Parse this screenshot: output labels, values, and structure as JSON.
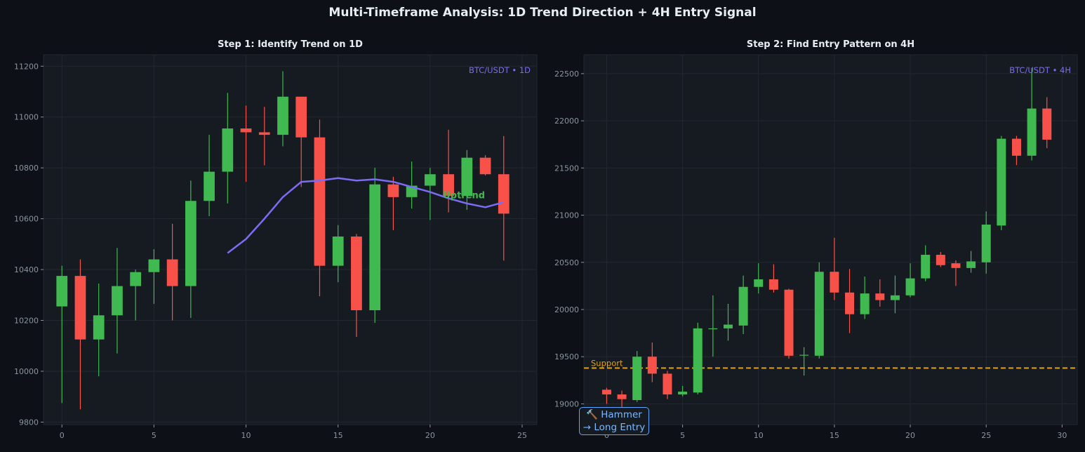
{
  "title": "Multi-Timeframe Analysis: 1D Trend Direction + 4H Entry Signal",
  "colors": {
    "up": "#3fb950",
    "down": "#f85149",
    "ma": "#7b6cf6",
    "support": "#e3a008",
    "annotation": "#58a6ff"
  },
  "chart_data": [
    {
      "type": "candlestick",
      "title": "Step 1: Identify Trend on 1D",
      "badge": "BTC/USDT • 1D",
      "trend_label": "Uptrend",
      "xlim": [
        -1,
        25.8
      ],
      "ylim": [
        9790,
        11245
      ],
      "x_ticks": [
        0,
        5,
        10,
        15,
        20,
        25
      ],
      "y_ticks": [
        9800,
        10000,
        10200,
        10400,
        10600,
        10800,
        11000,
        11200
      ],
      "grid": true,
      "candles": [
        {
          "x": 0,
          "o": 10255,
          "h": 10415,
          "l": 9875,
          "c": 10375
        },
        {
          "x": 1,
          "o": 10375,
          "h": 10440,
          "l": 9850,
          "c": 10125
        },
        {
          "x": 2,
          "o": 10125,
          "h": 10345,
          "l": 9980,
          "c": 10220
        },
        {
          "x": 3,
          "o": 10220,
          "h": 10485,
          "l": 10070,
          "c": 10335
        },
        {
          "x": 4,
          "o": 10335,
          "h": 10400,
          "l": 10200,
          "c": 10390
        },
        {
          "x": 5,
          "o": 10390,
          "h": 10480,
          "l": 10265,
          "c": 10440
        },
        {
          "x": 6,
          "o": 10440,
          "h": 10580,
          "l": 10200,
          "c": 10335
        },
        {
          "x": 7,
          "o": 10335,
          "h": 10750,
          "l": 10210,
          "c": 10670
        },
        {
          "x": 8,
          "o": 10670,
          "h": 10930,
          "l": 10610,
          "c": 10785
        },
        {
          "x": 9,
          "o": 10785,
          "h": 11095,
          "l": 10660,
          "c": 10955
        },
        {
          "x": 10,
          "o": 10955,
          "h": 11045,
          "l": 10745,
          "c": 10940
        },
        {
          "x": 11,
          "o": 10940,
          "h": 11040,
          "l": 10810,
          "c": 10930
        },
        {
          "x": 12,
          "o": 10930,
          "h": 11180,
          "l": 10885,
          "c": 11080
        },
        {
          "x": 13,
          "o": 11080,
          "h": 11080,
          "l": 10725,
          "c": 10920
        },
        {
          "x": 14,
          "o": 10920,
          "h": 10990,
          "l": 10295,
          "c": 10415
        },
        {
          "x": 15,
          "o": 10415,
          "h": 10575,
          "l": 10350,
          "c": 10530
        },
        {
          "x": 16,
          "o": 10530,
          "h": 10540,
          "l": 10135,
          "c": 10240
        },
        {
          "x": 17,
          "o": 10240,
          "h": 10800,
          "l": 10190,
          "c": 10735
        },
        {
          "x": 18,
          "o": 10735,
          "h": 10765,
          "l": 10555,
          "c": 10685
        },
        {
          "x": 19,
          "o": 10685,
          "h": 10825,
          "l": 10640,
          "c": 10730
        },
        {
          "x": 20,
          "o": 10730,
          "h": 10800,
          "l": 10595,
          "c": 10775
        },
        {
          "x": 21,
          "o": 10775,
          "h": 10950,
          "l": 10625,
          "c": 10690
        },
        {
          "x": 22,
          "o": 10690,
          "h": 10870,
          "l": 10635,
          "c": 10840
        },
        {
          "x": 23,
          "o": 10840,
          "h": 10850,
          "l": 10770,
          "c": 10775
        },
        {
          "x": 24,
          "o": 10775,
          "h": 10925,
          "l": 10435,
          "c": 10620
        }
      ],
      "ma": [
        {
          "x": 9,
          "y": 10465
        },
        {
          "x": 10,
          "y": 10520
        },
        {
          "x": 11,
          "y": 10600
        },
        {
          "x": 12,
          "y": 10685
        },
        {
          "x": 13,
          "y": 10745
        },
        {
          "x": 14,
          "y": 10750
        },
        {
          "x": 15,
          "y": 10760
        },
        {
          "x": 16,
          "y": 10750
        },
        {
          "x": 17,
          "y": 10755
        },
        {
          "x": 18,
          "y": 10745
        },
        {
          "x": 19,
          "y": 10725
        },
        {
          "x": 20,
          "y": 10705
        },
        {
          "x": 21,
          "y": 10680
        },
        {
          "x": 22,
          "y": 10660
        },
        {
          "x": 23,
          "y": 10645
        },
        {
          "x": 24,
          "y": 10665
        }
      ],
      "trend_label_pos": {
        "x": 20.7,
        "y": 10680
      }
    },
    {
      "type": "candlestick",
      "title": "Step 2: Find Entry Pattern on 4H",
      "badge": "BTC/USDT • 4H",
      "xlim": [
        -1.5,
        31
      ],
      "ylim": [
        18780,
        22700
      ],
      "x_ticks": [
        0,
        5,
        10,
        15,
        20,
        25,
        30
      ],
      "y_ticks": [
        19000,
        19500,
        20000,
        20500,
        21000,
        21500,
        22000,
        22500
      ],
      "grid": true,
      "support": {
        "y": 19380,
        "label": "Support"
      },
      "annotation": {
        "line1": "🔨 Hammer",
        "line2": "→ Long Entry"
      },
      "candles": [
        {
          "x": 0,
          "o": 19150,
          "h": 19170,
          "l": 19000,
          "c": 19100
        },
        {
          "x": 1,
          "o": 19100,
          "h": 19140,
          "l": 18960,
          "c": 19050
        },
        {
          "x": 2,
          "o": 19040,
          "h": 19560,
          "l": 19020,
          "c": 19500
        },
        {
          "x": 3,
          "o": 19500,
          "h": 19650,
          "l": 19230,
          "c": 19320
        },
        {
          "x": 4,
          "o": 19320,
          "h": 19350,
          "l": 19050,
          "c": 19100
        },
        {
          "x": 5,
          "o": 19100,
          "h": 19190,
          "l": 19080,
          "c": 19130
        },
        {
          "x": 6,
          "o": 19120,
          "h": 19860,
          "l": 19100,
          "c": 19800
        },
        {
          "x": 7,
          "o": 19800,
          "h": 20150,
          "l": 19500,
          "c": 19800
        },
        {
          "x": 8,
          "o": 19800,
          "h": 20060,
          "l": 19670,
          "c": 19840
        },
        {
          "x": 9,
          "o": 19830,
          "h": 20360,
          "l": 19740,
          "c": 20240
        },
        {
          "x": 10,
          "o": 20240,
          "h": 20490,
          "l": 20170,
          "c": 20320
        },
        {
          "x": 11,
          "o": 20320,
          "h": 20480,
          "l": 20180,
          "c": 20210
        },
        {
          "x": 12,
          "o": 20210,
          "h": 20220,
          "l": 19480,
          "c": 19510
        },
        {
          "x": 13,
          "o": 19520,
          "h": 19600,
          "l": 19300,
          "c": 19520
        },
        {
          "x": 14,
          "o": 19510,
          "h": 20500,
          "l": 19480,
          "c": 20400
        },
        {
          "x": 15,
          "o": 20400,
          "h": 20760,
          "l": 20100,
          "c": 20180
        },
        {
          "x": 16,
          "o": 20180,
          "h": 20430,
          "l": 19750,
          "c": 19950
        },
        {
          "x": 17,
          "o": 19950,
          "h": 20350,
          "l": 19900,
          "c": 20170
        },
        {
          "x": 18,
          "o": 20170,
          "h": 20320,
          "l": 20030,
          "c": 20100
        },
        {
          "x": 19,
          "o": 20100,
          "h": 20360,
          "l": 19960,
          "c": 20150
        },
        {
          "x": 20,
          "o": 20150,
          "h": 20490,
          "l": 20130,
          "c": 20330
        },
        {
          "x": 21,
          "o": 20330,
          "h": 20680,
          "l": 20300,
          "c": 20580
        },
        {
          "x": 22,
          "o": 20580,
          "h": 20610,
          "l": 20450,
          "c": 20470
        },
        {
          "x": 23,
          "o": 20490,
          "h": 20520,
          "l": 20250,
          "c": 20440
        },
        {
          "x": 24,
          "o": 20440,
          "h": 20620,
          "l": 20390,
          "c": 20510
        },
        {
          "x": 25,
          "o": 20500,
          "h": 21040,
          "l": 20380,
          "c": 20900
        },
        {
          "x": 26,
          "o": 20890,
          "h": 21840,
          "l": 20840,
          "c": 21810
        },
        {
          "x": 27,
          "o": 21810,
          "h": 21840,
          "l": 21530,
          "c": 21630
        },
        {
          "x": 28,
          "o": 21630,
          "h": 22560,
          "l": 21580,
          "c": 22130
        },
        {
          "x": 29,
          "o": 22130,
          "h": 22250,
          "l": 21710,
          "c": 21800
        }
      ]
    }
  ]
}
